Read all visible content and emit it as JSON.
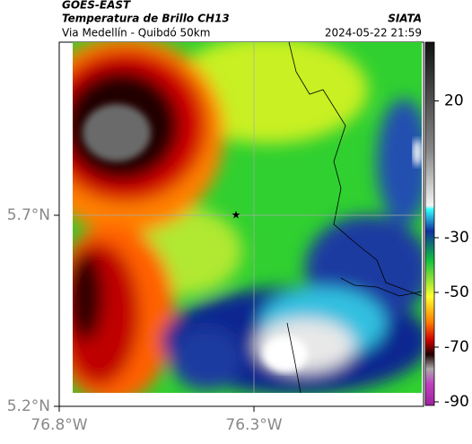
{
  "header": {
    "title": "GOES-EAST",
    "subtitle": "Temperatura de Brillo CH13",
    "source": "SIATA",
    "location": "Via Medellín - Quibdó 50km",
    "datetime": "2024-05-22 21:59"
  },
  "map": {
    "xticks": [
      {
        "value": -76.8,
        "label": "76.8°W"
      },
      {
        "value": -76.3,
        "label": "76.3°W"
      }
    ],
    "yticks": [
      {
        "value": 5.7,
        "label": "5.7°N"
      },
      {
        "value": 5.2,
        "label": "5.2°N"
      }
    ]
  },
  "colorbar": {
    "ticks": [
      20,
      -30,
      -50,
      -70,
      -90
    ]
  }
}
